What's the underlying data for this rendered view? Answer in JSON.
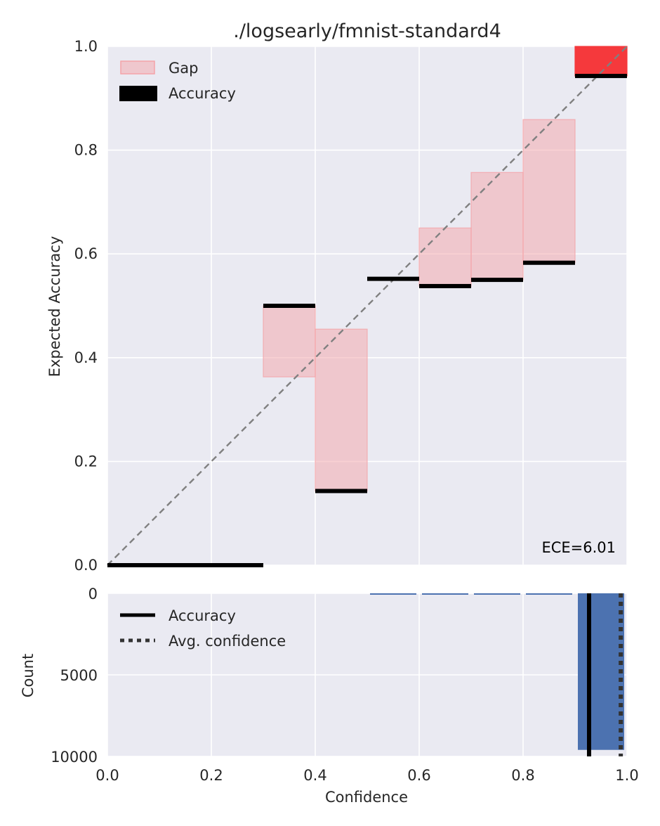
{
  "chart_data": [
    {
      "type": "bar",
      "title": "./logsearly/fmnist-standard4",
      "xlabel": "",
      "ylabel": "Expected Accuracy",
      "xlim": [
        0.0,
        1.0
      ],
      "ylim": [
        0.0,
        1.0
      ],
      "xticks": [
        "0.0",
        "0.2",
        "0.4",
        "0.6",
        "0.8",
        "1.0"
      ],
      "yticks": [
        "0.0",
        "0.2",
        "0.4",
        "0.6",
        "0.8",
        "1.0"
      ],
      "grid": true,
      "legend_position": "top-left",
      "legend": [
        {
          "label": "Gap",
          "marker": "patch",
          "color": "#f4a3a8"
        },
        {
          "label": "Accuracy",
          "marker": "bar",
          "color": "#000000"
        }
      ],
      "annotation": "ECE=6.01",
      "diagonal": {
        "from": [
          0,
          0
        ],
        "to": [
          1,
          1
        ],
        "style": "dashed",
        "color": "#808080"
      },
      "bins": [
        {
          "start": 0.0,
          "end": 0.1,
          "accuracy": 0.0,
          "gap_low": null,
          "gap_high": null
        },
        {
          "start": 0.1,
          "end": 0.2,
          "accuracy": 0.0,
          "gap_low": null,
          "gap_high": null
        },
        {
          "start": 0.2,
          "end": 0.3,
          "accuracy": 0.0,
          "gap_low": null,
          "gap_high": null
        },
        {
          "start": 0.3,
          "end": 0.4,
          "accuracy": 0.5,
          "gap_low": 0.363,
          "gap_high": 0.5
        },
        {
          "start": 0.4,
          "end": 0.5,
          "accuracy": 0.143,
          "gap_low": 0.143,
          "gap_high": 0.455
        },
        {
          "start": 0.5,
          "end": 0.6,
          "accuracy": 0.552,
          "gap_low": null,
          "gap_high": null
        },
        {
          "start": 0.6,
          "end": 0.7,
          "accuracy": 0.538,
          "gap_low": 0.538,
          "gap_high": 0.65
        },
        {
          "start": 0.7,
          "end": 0.8,
          "accuracy": 0.55,
          "gap_low": 0.55,
          "gap_high": 0.757
        },
        {
          "start": 0.8,
          "end": 0.9,
          "accuracy": 0.583,
          "gap_low": 0.583,
          "gap_high": 0.859
        },
        {
          "start": 0.9,
          "end": 1.0,
          "accuracy": 0.943,
          "gap_low": 0.943,
          "gap_high": 1.0,
          "gap_color": "#f5393c"
        }
      ]
    },
    {
      "type": "bar",
      "title": "",
      "xlabel": "Confidence",
      "ylabel": "Count",
      "xlim": [
        0.0,
        1.0
      ],
      "ylim": [
        10000,
        0
      ],
      "xticks": [
        "0.0",
        "0.2",
        "0.4",
        "0.6",
        "0.8",
        "1.0"
      ],
      "yticks": [
        "0",
        "5000",
        "10000"
      ],
      "grid": true,
      "legend_position": "top-left",
      "legend": [
        {
          "label": "Accuracy",
          "line_style": "solid",
          "color": "#000000"
        },
        {
          "label": "Avg. confidence",
          "line_style": "dotted",
          "color": "#333333"
        }
      ],
      "bar_color": "#4c72b0",
      "bins": [
        {
          "start": 0.5,
          "end": 0.6,
          "count": 12
        },
        {
          "start": 0.6,
          "end": 0.7,
          "count": 16
        },
        {
          "start": 0.7,
          "end": 0.8,
          "count": 18
        },
        {
          "start": 0.8,
          "end": 0.9,
          "count": 45
        },
        {
          "start": 0.9,
          "end": 1.0,
          "count": 9600
        }
      ],
      "accuracy_line": 0.927,
      "avg_confidence_line": 0.988
    }
  ]
}
